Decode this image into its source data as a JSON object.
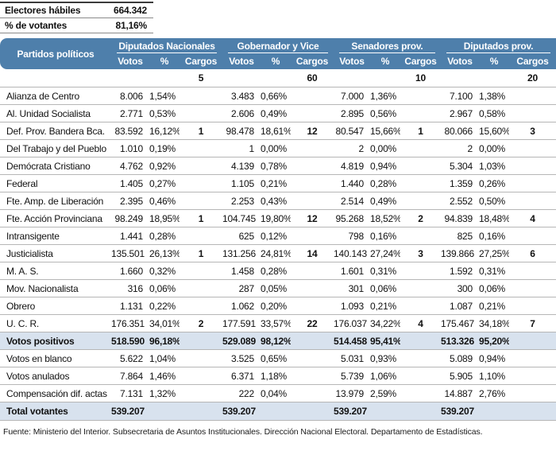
{
  "top": {
    "rows": [
      {
        "label": "Electores hábiles",
        "value": "664.342"
      },
      {
        "label": "% de votantes",
        "value": "81,16%"
      }
    ]
  },
  "header": {
    "party_col": "Partidos políticos",
    "groups": [
      {
        "label": "Diputados Nacionales",
        "seats": "5"
      },
      {
        "label": "Gobernador y Vice",
        "seats": "60"
      },
      {
        "label": "Senadores prov.",
        "seats": "10"
      },
      {
        "label": "Diputados prov.",
        "seats": "20"
      }
    ],
    "sub": [
      "Votos",
      "%",
      "Cargos"
    ]
  },
  "colors": {
    "header_blue": "#4e7fab",
    "highlight_blue": "#d8e2ee",
    "row_border": "#b6b6b6"
  },
  "parties": [
    {
      "name": "Alianza de Centro",
      "dn": {
        "votos": "8.006",
        "pct": "1,54%",
        "cargos": ""
      },
      "gv": {
        "votos": "3.483",
        "pct": "0,66%",
        "cargos": ""
      },
      "sp": {
        "votos": "7.000",
        "pct": "1,36%",
        "cargos": ""
      },
      "dp": {
        "votos": "7.100",
        "pct": "1,38%",
        "cargos": ""
      }
    },
    {
      "name": "Al. Unidad Socialista",
      "dn": {
        "votos": "2.771",
        "pct": "0,53%",
        "cargos": ""
      },
      "gv": {
        "votos": "2.606",
        "pct": "0,49%",
        "cargos": ""
      },
      "sp": {
        "votos": "2.895",
        "pct": "0,56%",
        "cargos": ""
      },
      "dp": {
        "votos": "2.967",
        "pct": "0,58%",
        "cargos": ""
      }
    },
    {
      "name": "Def. Prov. Bandera Bca.",
      "dn": {
        "votos": "83.592",
        "pct": "16,12%",
        "cargos": "1"
      },
      "gv": {
        "votos": "98.478",
        "pct": "18,61%",
        "cargos": "12"
      },
      "sp": {
        "votos": "80.547",
        "pct": "15,66%",
        "cargos": "1"
      },
      "dp": {
        "votos": "80.066",
        "pct": "15,60%",
        "cargos": "3"
      }
    },
    {
      "name": "Del Trabajo y del Pueblo",
      "dn": {
        "votos": "1.010",
        "pct": "0,19%",
        "cargos": ""
      },
      "gv": {
        "votos": "1",
        "pct": "0,00%",
        "cargos": ""
      },
      "sp": {
        "votos": "2",
        "pct": "0,00%",
        "cargos": ""
      },
      "dp": {
        "votos": "2",
        "pct": "0,00%",
        "cargos": ""
      }
    },
    {
      "name": "Demócrata Cristiano",
      "dn": {
        "votos": "4.762",
        "pct": "0,92%",
        "cargos": ""
      },
      "gv": {
        "votos": "4.139",
        "pct": "0,78%",
        "cargos": ""
      },
      "sp": {
        "votos": "4.819",
        "pct": "0,94%",
        "cargos": ""
      },
      "dp": {
        "votos": "5.304",
        "pct": "1,03%",
        "cargos": ""
      }
    },
    {
      "name": "Federal",
      "dn": {
        "votos": "1.405",
        "pct": "0,27%",
        "cargos": ""
      },
      "gv": {
        "votos": "1.105",
        "pct": "0,21%",
        "cargos": ""
      },
      "sp": {
        "votos": "1.440",
        "pct": "0,28%",
        "cargos": ""
      },
      "dp": {
        "votos": "1.359",
        "pct": "0,26%",
        "cargos": ""
      }
    },
    {
      "name": "Fte. Amp. de Liberación",
      "dn": {
        "votos": "2.395",
        "pct": "0,46%",
        "cargos": ""
      },
      "gv": {
        "votos": "2.253",
        "pct": "0,43%",
        "cargos": ""
      },
      "sp": {
        "votos": "2.514",
        "pct": "0,49%",
        "cargos": ""
      },
      "dp": {
        "votos": "2.552",
        "pct": "0,50%",
        "cargos": ""
      }
    },
    {
      "name": "Fte. Acción Provinciana",
      "dn": {
        "votos": "98.249",
        "pct": "18,95%",
        "cargos": "1"
      },
      "gv": {
        "votos": "104.745",
        "pct": "19,80%",
        "cargos": "12"
      },
      "sp": {
        "votos": "95.268",
        "pct": "18,52%",
        "cargos": "2"
      },
      "dp": {
        "votos": "94.839",
        "pct": "18,48%",
        "cargos": "4"
      }
    },
    {
      "name": "Intransigente",
      "dn": {
        "votos": "1.441",
        "pct": "0,28%",
        "cargos": ""
      },
      "gv": {
        "votos": "625",
        "pct": "0,12%",
        "cargos": ""
      },
      "sp": {
        "votos": "798",
        "pct": "0,16%",
        "cargos": ""
      },
      "dp": {
        "votos": "825",
        "pct": "0,16%",
        "cargos": ""
      }
    },
    {
      "name": "Justicialista",
      "dn": {
        "votos": "135.501",
        "pct": "26,13%",
        "cargos": "1"
      },
      "gv": {
        "votos": "131.256",
        "pct": "24,81%",
        "cargos": "14"
      },
      "sp": {
        "votos": "140.143",
        "pct": "27,24%",
        "cargos": "3"
      },
      "dp": {
        "votos": "139.866",
        "pct": "27,25%",
        "cargos": "6"
      }
    },
    {
      "name": "M. A. S.",
      "dn": {
        "votos": "1.660",
        "pct": "0,32%",
        "cargos": ""
      },
      "gv": {
        "votos": "1.458",
        "pct": "0,28%",
        "cargos": ""
      },
      "sp": {
        "votos": "1.601",
        "pct": "0,31%",
        "cargos": ""
      },
      "dp": {
        "votos": "1.592",
        "pct": "0,31%",
        "cargos": ""
      }
    },
    {
      "name": "Mov. Nacionalista",
      "dn": {
        "votos": "316",
        "pct": "0,06%",
        "cargos": ""
      },
      "gv": {
        "votos": "287",
        "pct": "0,05%",
        "cargos": ""
      },
      "sp": {
        "votos": "301",
        "pct": "0,06%",
        "cargos": ""
      },
      "dp": {
        "votos": "300",
        "pct": "0,06%",
        "cargos": ""
      }
    },
    {
      "name": "Obrero",
      "dn": {
        "votos": "1.131",
        "pct": "0,22%",
        "cargos": ""
      },
      "gv": {
        "votos": "1.062",
        "pct": "0,20%",
        "cargos": ""
      },
      "sp": {
        "votos": "1.093",
        "pct": "0,21%",
        "cargos": ""
      },
      "dp": {
        "votos": "1.087",
        "pct": "0,21%",
        "cargos": ""
      }
    },
    {
      "name": "U. C. R.",
      "dn": {
        "votos": "176.351",
        "pct": "34,01%",
        "cargos": "2"
      },
      "gv": {
        "votos": "177.591",
        "pct": "33,57%",
        "cargos": "22"
      },
      "sp": {
        "votos": "176.037",
        "pct": "34,22%",
        "cargos": "4"
      },
      "dp": {
        "votos": "175.467",
        "pct": "34,18%",
        "cargos": "7"
      }
    }
  ],
  "summary": [
    {
      "name": "Votos positivos",
      "emphasis": true,
      "dn": {
        "votos": "518.590",
        "pct": "96,18%"
      },
      "gv": {
        "votos": "529.089",
        "pct": "98,12%"
      },
      "sp": {
        "votos": "514.458",
        "pct": "95,41%"
      },
      "dp": {
        "votos": "513.326",
        "pct": "95,20%"
      }
    },
    {
      "name": "Votos en blanco",
      "emphasis": false,
      "dn": {
        "votos": "5.622",
        "pct": "1,04%"
      },
      "gv": {
        "votos": "3.525",
        "pct": "0,65%"
      },
      "sp": {
        "votos": "5.031",
        "pct": "0,93%"
      },
      "dp": {
        "votos": "5.089",
        "pct": "0,94%"
      }
    },
    {
      "name": "Votos anulados",
      "emphasis": false,
      "dn": {
        "votos": "7.864",
        "pct": "1,46%"
      },
      "gv": {
        "votos": "6.371",
        "pct": "1,18%"
      },
      "sp": {
        "votos": "5.739",
        "pct": "1,06%"
      },
      "dp": {
        "votos": "5.905",
        "pct": "1,10%"
      }
    },
    {
      "name": "Compensación dif. actas",
      "emphasis": false,
      "dn": {
        "votos": "7.131",
        "pct": "1,32%"
      },
      "gv": {
        "votos": "222",
        "pct": "0,04%"
      },
      "sp": {
        "votos": "13.979",
        "pct": "2,59%"
      },
      "dp": {
        "votos": "14.887",
        "pct": "2,76%"
      }
    },
    {
      "name": "Total votantes",
      "emphasis": true,
      "dn": {
        "votos": "539.207",
        "pct": ""
      },
      "gv": {
        "votos": "539.207",
        "pct": ""
      },
      "sp": {
        "votos": "539.207",
        "pct": ""
      },
      "dp": {
        "votos": "539.207",
        "pct": ""
      }
    }
  ],
  "footer": "Fuente: Ministerio del Interior. Subsecretaria de Asuntos Institucionales. Dirección Nacional Electoral. Departamento de Estadísticas."
}
